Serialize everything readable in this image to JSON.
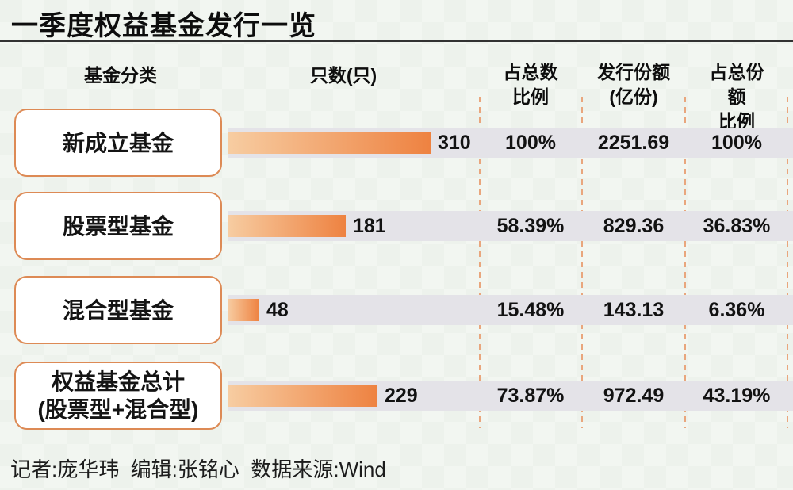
{
  "title": "一季度权益基金发行一览",
  "headers": {
    "category": "基金分类",
    "count": "只数(只)",
    "pct_count": "占总数\n比例",
    "shares": "发行份额\n(亿份)",
    "pct_shares": "占总份额\n比例"
  },
  "rows": [
    {
      "category": "新成立基金",
      "count_label": "310",
      "pct_of_count": "100%",
      "shares": "2251.69",
      "pct_of_shares": "100%"
    },
    {
      "category": "股票型基金",
      "count_label": "181",
      "pct_of_count": "58.39%",
      "shares": "829.36",
      "pct_of_shares": "36.83%"
    },
    {
      "category": "混合型基金",
      "count_label": "48",
      "pct_of_count": "15.48%",
      "shares": "143.13",
      "pct_of_shares": "6.36%"
    },
    {
      "category": "权益基金总计\n(股票型+混合型)",
      "count_label": "229",
      "pct_of_count": "73.87%",
      "shares": "972.49",
      "pct_of_shares": "43.19%"
    }
  ],
  "footer": "记者:庞华玮  编辑:张铭心  数据来源:Wind",
  "colors": {
    "background": "#edf2ec",
    "bar_gradient_start": "#f7cda2",
    "bar_gradient_end": "#ee8241",
    "band": "#e4e3e8",
    "box_border": "#dd8a55",
    "dashed_line": "#e9a67d",
    "title_rule": "#323232",
    "text": "#101010"
  },
  "chart_data": {
    "type": "bar",
    "title": "一季度权益基金发行一览",
    "categories": [
      "新成立基金",
      "股票型基金",
      "混合型基金",
      "权益基金总计(股票型+混合型)"
    ],
    "values": [
      310,
      181,
      48,
      229
    ],
    "series": [
      {
        "name": "只数(只)",
        "values": [
          310,
          181,
          48,
          229
        ]
      },
      {
        "name": "占总数比例",
        "values": [
          "100%",
          "58.39%",
          "15.48%",
          "73.87%"
        ]
      },
      {
        "name": "发行份额(亿份)",
        "values": [
          2251.69,
          829.36,
          143.13,
          972.49
        ]
      },
      {
        "name": "占总份额比例",
        "values": [
          "100%",
          "36.83%",
          "6.36%",
          "43.19%"
        ]
      }
    ],
    "orientation": "horizontal",
    "xlim": [
      0,
      310
    ],
    "grid": false,
    "legend": false,
    "data_labels": true,
    "source": "Wind"
  }
}
